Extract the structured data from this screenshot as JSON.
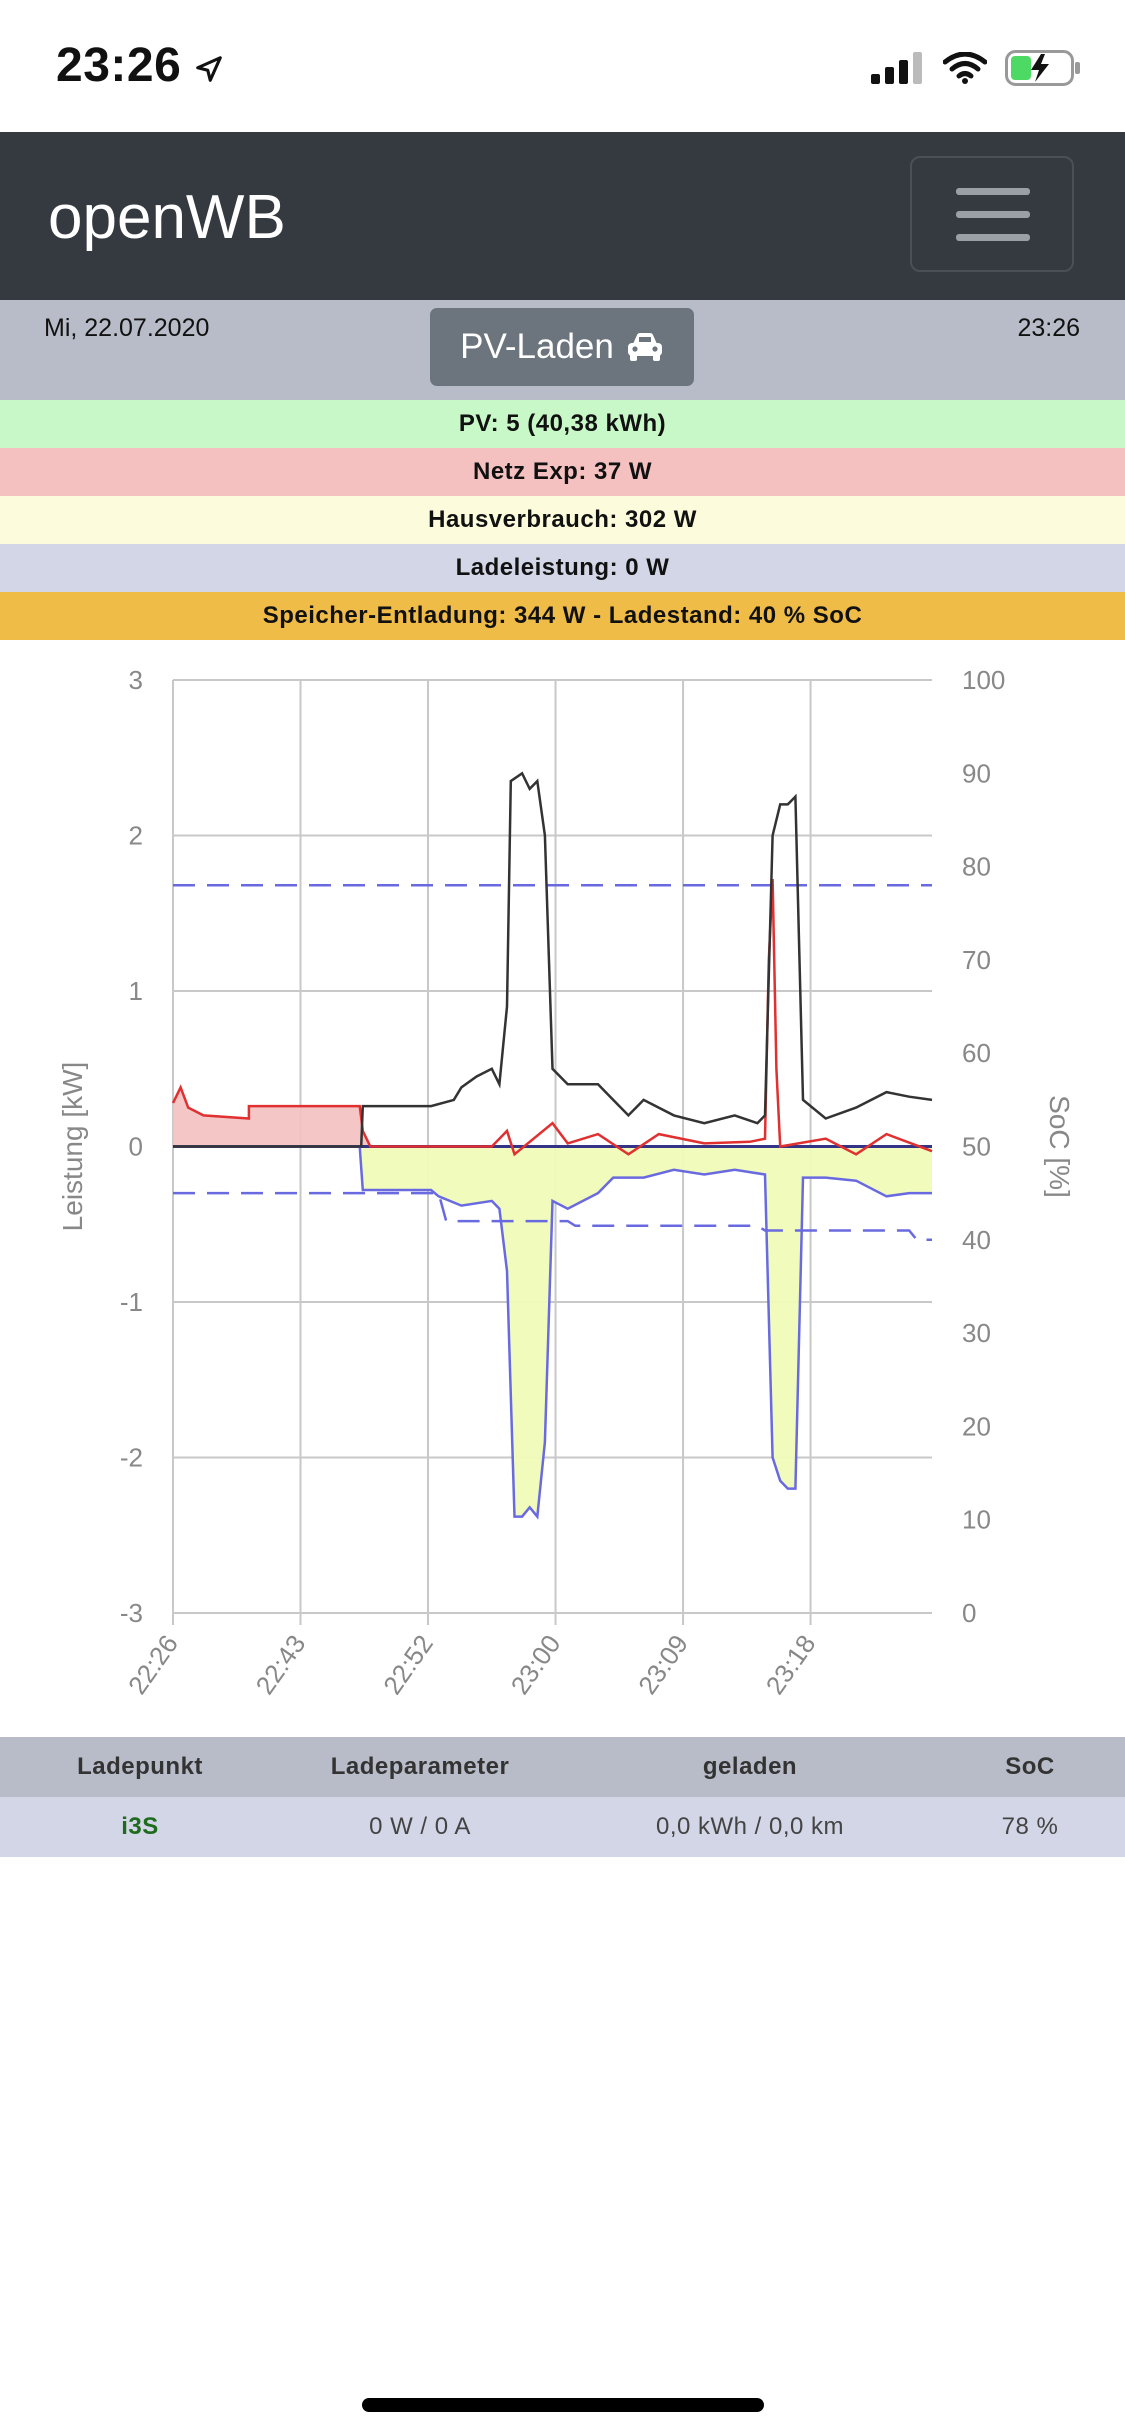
{
  "statusbar": {
    "time": "23:26"
  },
  "header": {
    "brand": "openWB"
  },
  "daterow": {
    "date": "Mi, 22.07.2020",
    "time": "23:26",
    "mode_label": "PV-Laden"
  },
  "info": {
    "pv": "PV: 5 (40,38 kWh)",
    "netz": "Netz Exp: 37 W",
    "haus": "Hausverbrauch: 302 W",
    "lade": "Ladeleistung: 0 W",
    "speicher": "Speicher-Entladung: 344 W - Ladestand: 40 % SoC"
  },
  "colors": {
    "pv": "#c8f8c8",
    "netz": "#f4c0c0",
    "haus": "#fcfcdc",
    "lade": "#d2d6e6",
    "speicher": "#f0bc48",
    "house_line": "#333333",
    "grid_line": "#e03030",
    "storage_line": "#6a6ae0",
    "soc_line": "#6a6ae0"
  },
  "chart_data": {
    "type": "line",
    "ylabel": "Leistung [kW]",
    "y2label": "SoC [%]",
    "ylim": [
      -3,
      3
    ],
    "y2lim": [
      0,
      100
    ],
    "yticks": [
      "3",
      "2",
      "1",
      "0",
      "-1",
      "-2",
      "-3"
    ],
    "y2ticks": [
      "100",
      "90",
      "80",
      "70",
      "60",
      "50",
      "40",
      "30",
      "20",
      "10",
      "0"
    ],
    "xticks": [
      "22:26",
      "22:43",
      "22:52",
      "23:00",
      "23:09",
      "23:18"
    ],
    "grid": true,
    "series": [
      {
        "style": "black-line",
        "points": [
          [
            0.0,
            0.0
          ],
          [
            0.248,
            0.0
          ],
          [
            0.25,
            0.26
          ],
          [
            0.34,
            0.26
          ],
          [
            0.37,
            0.3
          ],
          [
            0.38,
            0.38
          ],
          [
            0.4,
            0.45
          ],
          [
            0.42,
            0.5
          ],
          [
            0.43,
            0.4
          ],
          [
            0.44,
            0.9
          ],
          [
            0.445,
            2.35
          ],
          [
            0.46,
            2.4
          ],
          [
            0.47,
            2.3
          ],
          [
            0.48,
            2.35
          ],
          [
            0.49,
            2.0
          ],
          [
            0.5,
            0.5
          ],
          [
            0.52,
            0.4
          ],
          [
            0.56,
            0.4
          ],
          [
            0.58,
            0.3
          ],
          [
            0.6,
            0.2
          ],
          [
            0.62,
            0.3
          ],
          [
            0.66,
            0.2
          ],
          [
            0.7,
            0.15
          ],
          [
            0.74,
            0.2
          ],
          [
            0.77,
            0.15
          ],
          [
            0.78,
            0.2
          ],
          [
            0.79,
            2.0
          ],
          [
            0.8,
            2.2
          ],
          [
            0.81,
            2.2
          ],
          [
            0.82,
            2.25
          ],
          [
            0.83,
            0.3
          ],
          [
            0.86,
            0.18
          ],
          [
            0.9,
            0.25
          ],
          [
            0.94,
            0.35
          ],
          [
            0.97,
            0.32
          ],
          [
            1.0,
            0.3
          ]
        ]
      },
      {
        "style": "red-line",
        "points": [
          [
            0.0,
            0.28
          ],
          [
            0.01,
            0.38
          ],
          [
            0.02,
            0.25
          ],
          [
            0.04,
            0.2
          ],
          [
            0.1,
            0.18
          ],
          [
            0.1,
            0.26
          ],
          [
            0.246,
            0.26
          ],
          [
            0.25,
            0.1
          ],
          [
            0.26,
            0.0
          ],
          [
            0.42,
            0.0
          ],
          [
            0.43,
            0.05
          ],
          [
            0.44,
            0.1
          ],
          [
            0.45,
            -0.05
          ],
          [
            0.5,
            0.15
          ],
          [
            0.52,
            0.02
          ],
          [
            0.56,
            0.08
          ],
          [
            0.6,
            -0.05
          ],
          [
            0.64,
            0.08
          ],
          [
            0.7,
            0.02
          ],
          [
            0.76,
            0.03
          ],
          [
            0.78,
            0.05
          ],
          [
            0.785,
            1.2
          ],
          [
            0.79,
            1.72
          ],
          [
            0.795,
            0.5
          ],
          [
            0.8,
            0.0
          ],
          [
            0.86,
            0.05
          ],
          [
            0.9,
            -0.05
          ],
          [
            0.94,
            0.08
          ],
          [
            1.0,
            -0.03
          ]
        ]
      },
      {
        "style": "blue-line",
        "points": [
          [
            0.0,
            0.0
          ],
          [
            0.246,
            0.0
          ],
          [
            0.25,
            -0.28
          ],
          [
            0.34,
            -0.28
          ],
          [
            0.35,
            -0.32
          ],
          [
            0.38,
            -0.38
          ],
          [
            0.42,
            -0.35
          ],
          [
            0.43,
            -0.4
          ],
          [
            0.44,
            -0.8
          ],
          [
            0.45,
            -2.38
          ],
          [
            0.46,
            -2.38
          ],
          [
            0.47,
            -2.32
          ],
          [
            0.48,
            -2.38
          ],
          [
            0.49,
            -1.9
          ],
          [
            0.5,
            -0.35
          ],
          [
            0.52,
            -0.4
          ],
          [
            0.56,
            -0.3
          ],
          [
            0.58,
            -0.2
          ],
          [
            0.62,
            -0.2
          ],
          [
            0.66,
            -0.15
          ],
          [
            0.7,
            -0.18
          ],
          [
            0.74,
            -0.15
          ],
          [
            0.78,
            -0.18
          ],
          [
            0.79,
            -2.0
          ],
          [
            0.8,
            -2.15
          ],
          [
            0.81,
            -2.2
          ],
          [
            0.82,
            -2.2
          ],
          [
            0.83,
            -0.2
          ],
          [
            0.86,
            -0.2
          ],
          [
            0.9,
            -0.22
          ],
          [
            0.94,
            -0.32
          ],
          [
            0.97,
            -0.3
          ],
          [
            1.0,
            -0.3
          ]
        ]
      },
      {
        "style": "soc-dashed",
        "points": [
          [
            0.0,
            45.0
          ],
          [
            0.25,
            45.0
          ],
          [
            0.35,
            45.0
          ],
          [
            0.36,
            42.0
          ],
          [
            0.52,
            42.0
          ],
          [
            0.53,
            41.5
          ],
          [
            0.77,
            41.5
          ],
          [
            0.78,
            41.0
          ],
          [
            0.97,
            41.0
          ],
          [
            0.98,
            40.0
          ],
          [
            1.0,
            40.0
          ]
        ]
      },
      {
        "style": "ev-soc-dashed",
        "points": [
          [
            0.0,
            78.0
          ],
          [
            1.0,
            78.0
          ]
        ]
      }
    ]
  },
  "table": {
    "headers": [
      "Ladepunkt",
      "Ladeparameter",
      "geladen",
      "SoC"
    ],
    "row": {
      "name": "i3S",
      "param": "0 W / 0 A",
      "geladen": "0,0 kWh / 0,0 km",
      "soc": "78 %"
    }
  }
}
